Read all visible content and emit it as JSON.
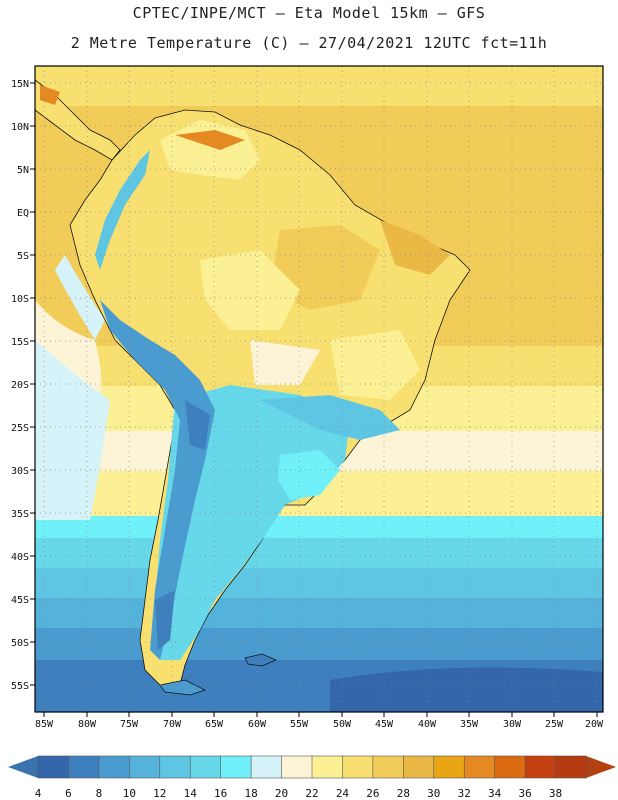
{
  "header": {
    "line1": "CPTEC/INPE/MCT –  Eta Model 15km – GFS",
    "line2": "2 Metre Temperature (C) – 27/04/2021 12UTC fct=11h"
  },
  "map": {
    "lat_labels": [
      "15N",
      "10N",
      "5N",
      "EQ",
      "5S",
      "10S",
      "15S",
      "20S",
      "25S",
      "30S",
      "35S",
      "40S",
      "45S",
      "50S",
      "55S"
    ],
    "lon_labels": [
      "85W",
      "80W",
      "75W",
      "70W",
      "65W",
      "60W",
      "55W",
      "50W",
      "45W",
      "40W",
      "35W",
      "30W",
      "25W",
      "20W"
    ]
  },
  "legend": {
    "ticks": [
      "4",
      "6",
      "8",
      "10",
      "12",
      "14",
      "16",
      "18",
      "20",
      "22",
      "24",
      "26",
      "28",
      "30",
      "32",
      "34",
      "36",
      "38"
    ],
    "colors": [
      "#3366aa",
      "#3d80bd",
      "#4a9bcf",
      "#55b2db",
      "#5ec6e2",
      "#66d8ea",
      "#70f0f8",
      "#d5f3f8",
      "#fdf4d8",
      "#fcf095",
      "#f8e070",
      "#f2cc58",
      "#eab845",
      "#e9a514",
      "#e58a22",
      "#db6a10",
      "#c54010",
      "#b53a10"
    ],
    "under_color": "#3a72b0",
    "over_color": "#b5400f"
  }
}
